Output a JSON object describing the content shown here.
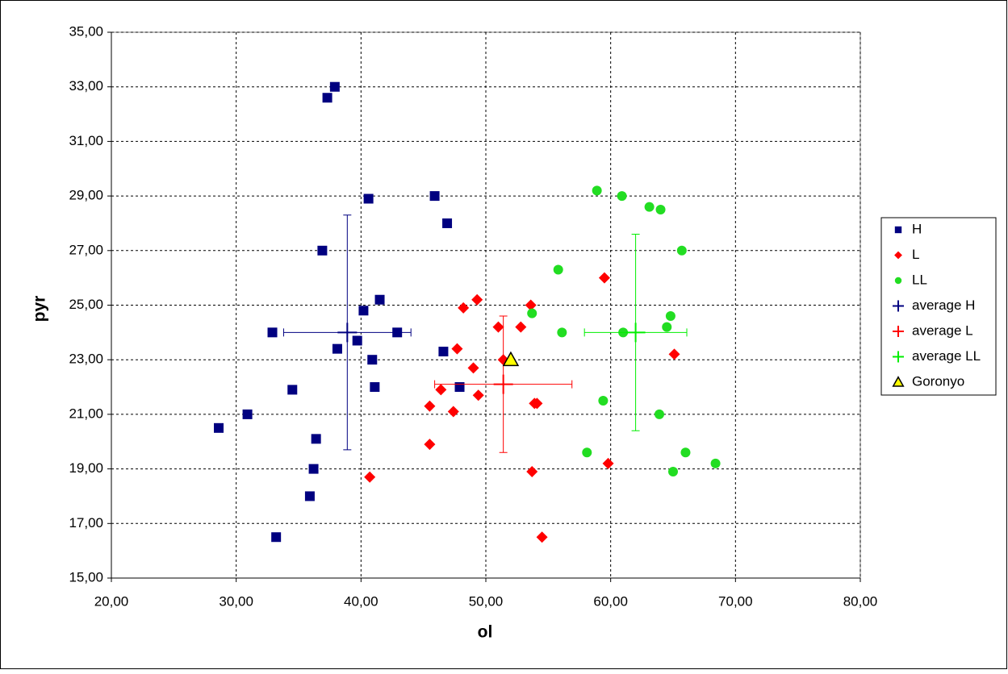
{
  "chart_data": {
    "type": "scatter",
    "xlabel": "ol",
    "ylabel": "pyr",
    "xlim": [
      20,
      80
    ],
    "ylim": [
      15,
      35
    ],
    "xticks": [
      {
        "value": 20,
        "label": "20,00"
      },
      {
        "value": 30,
        "label": "30,00"
      },
      {
        "value": 40,
        "label": "40,00"
      },
      {
        "value": 50,
        "label": "50,00"
      },
      {
        "value": 60,
        "label": "60,00"
      },
      {
        "value": 70,
        "label": "70,00"
      },
      {
        "value": 80,
        "label": "80,00"
      }
    ],
    "yticks": [
      {
        "value": 15,
        "label": "15,00"
      },
      {
        "value": 17,
        "label": "17,00"
      },
      {
        "value": 19,
        "label": "19,00"
      },
      {
        "value": 21,
        "label": "21,00"
      },
      {
        "value": 23,
        "label": "23,00"
      },
      {
        "value": 25,
        "label": "25,00"
      },
      {
        "value": 27,
        "label": "27,00"
      },
      {
        "value": 29,
        "label": "29,00"
      },
      {
        "value": 31,
        "label": "31,00"
      },
      {
        "value": 33,
        "label": "33,00"
      },
      {
        "value": 35,
        "label": "35,00"
      }
    ],
    "grid": true,
    "legend": "right",
    "series": [
      {
        "name": "H",
        "color": "#000080",
        "marker": "square",
        "x": [
          28.6,
          30.9,
          32.9,
          33.2,
          34.5,
          35.9,
          36.2,
          36.4,
          36.9,
          37.3,
          37.9,
          38.1,
          39.7,
          40.2,
          40.6,
          40.9,
          41.1,
          41.5,
          42.9,
          45.9,
          46.6,
          46.9,
          47.9
        ],
        "y": [
          20.5,
          21.0,
          24.0,
          16.5,
          21.9,
          18.0,
          19.0,
          20.1,
          27.0,
          32.6,
          33.0,
          23.4,
          23.7,
          24.8,
          28.9,
          23.0,
          22.0,
          25.2,
          24.0,
          29.0,
          23.3,
          28.0,
          22.0
        ]
      },
      {
        "name": "L",
        "color": "#ff0000",
        "marker": "diamond",
        "x": [
          40.7,
          45.5,
          45.5,
          46.4,
          47.4,
          47.7,
          48.2,
          49.0,
          49.3,
          49.4,
          51.0,
          51.4,
          52.8,
          53.6,
          53.7,
          53.9,
          54.1,
          54.5,
          59.5,
          59.8,
          65.1
        ],
        "y": [
          18.7,
          19.9,
          21.3,
          21.9,
          21.1,
          23.4,
          24.9,
          22.7,
          25.2,
          21.7,
          24.2,
          23.0,
          24.2,
          25.0,
          18.9,
          21.4,
          21.4,
          16.5,
          26.0,
          19.2,
          23.2
        ]
      },
      {
        "name": "LL",
        "color": "#22dd22",
        "marker": "circle",
        "x": [
          53.7,
          55.8,
          56.1,
          58.1,
          58.9,
          59.4,
          60.9,
          61.0,
          63.1,
          63.9,
          64.0,
          64.5,
          64.8,
          65.0,
          65.7,
          66.0,
          68.4
        ],
        "y": [
          24.7,
          26.3,
          24.0,
          19.6,
          29.2,
          21.5,
          29.0,
          24.0,
          28.6,
          21.0,
          28.5,
          24.2,
          24.6,
          18.9,
          27.0,
          19.6,
          19.2
        ]
      },
      {
        "name": "average H",
        "color": "#000080",
        "marker": "plus",
        "x": [
          38.9
        ],
        "y": [
          24.0
        ],
        "xerr": [
          5.1
        ],
        "yerr": [
          4.3
        ]
      },
      {
        "name": "average L",
        "color": "#ff0000",
        "marker": "plus",
        "x": [
          51.4
        ],
        "y": [
          22.1
        ],
        "xerr": [
          5.5
        ],
        "yerr": [
          2.5
        ]
      },
      {
        "name": "average LL",
        "color": "#00ee00",
        "marker": "plus",
        "x": [
          62.0
        ],
        "y": [
          24.0
        ],
        "xerr": [
          4.1
        ],
        "yerr": [
          3.6
        ]
      },
      {
        "name": "Goronyo",
        "color": "#ffff00",
        "marker": "triangle",
        "x": [
          52.0
        ],
        "y": [
          23.0
        ]
      }
    ]
  }
}
